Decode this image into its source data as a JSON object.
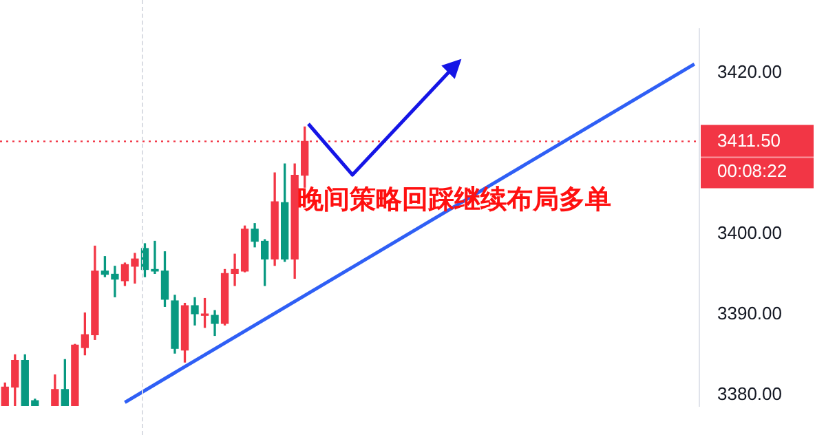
{
  "chart_data": {
    "type": "candlestick",
    "categories": [
      null,
      null,
      null,
      null,
      null,
      null,
      null,
      null,
      null,
      null,
      null,
      null,
      null,
      null,
      null,
      null,
      null,
      null,
      null,
      null,
      null,
      null,
      null,
      null,
      null,
      null,
      null,
      null,
      null,
      null,
      null,
      null,
      null,
      null,
      null,
      null,
      null,
      null,
      null,
      null,
      null,
      null,
      null,
      null,
      null,
      null,
      null,
      null,
      null,
      null,
      null,
      null,
      null,
      null,
      null,
      null,
      null,
      null,
      null,
      null,
      null,
      null,
      null,
      null,
      null,
      null,
      null,
      null,
      null,
      null
    ],
    "ohlc": [
      [
        3378.7,
        3381.5,
        3378.7,
        3381.0
      ],
      [
        3381.0,
        3385.0,
        3378.7,
        3384.3
      ],
      [
        3384.3,
        3385.0,
        3378.7,
        3378.7
      ],
      [
        3379.3,
        3379.5,
        3378.7,
        3378.7
      ],
      null,
      [
        3378.7,
        3382.5,
        3378.7,
        3380.7
      ],
      [
        3380.7,
        3384.4,
        3378.7,
        3378.7
      ],
      [
        3378.7,
        3386.3,
        3378.7,
        3386.2
      ],
      [
        3385.9,
        3390.2,
        3385.0,
        3387.5
      ],
      [
        3387.5,
        3398.5,
        3386.9,
        3395.4
      ],
      [
        3395.4,
        3397.2,
        3394.7,
        3395.0
      ],
      [
        3395.0,
        3396.0,
        3392.2,
        3394.4
      ],
      [
        3394.2,
        3396.4,
        3393.6,
        3396.2
      ],
      [
        3396.0,
        3397.6,
        3393.9,
        3396.9
      ],
      [
        3398.2,
        3398.8,
        3394.7,
        3395.6
      ],
      [
        3395.6,
        3399.1,
        3395.1,
        3395.4
      ],
      [
        3395.4,
        3397.8,
        3391.0,
        3391.9
      ],
      [
        3391.7,
        3392.4,
        3385.2,
        3385.8
      ],
      [
        3385.6,
        3391.4,
        3384.1,
        3391.1
      ],
      [
        3391.1,
        3392.1,
        3388.7,
        3390.1
      ],
      [
        3389.9,
        3392.0,
        3388.4,
        3390.0
      ],
      [
        3389.9,
        3390.5,
        3387.4,
        3388.9
      ],
      [
        3388.9,
        3395.6,
        3388.7,
        3395.1
      ],
      [
        3395.1,
        3397.5,
        3393.6,
        3395.6
      ],
      [
        3395.4,
        3401.0,
        3395.3,
        3400.6
      ],
      [
        3400.6,
        3401.3,
        3398.4,
        3399.1
      ],
      [
        3399.1,
        3399.3,
        3393.6,
        3396.9
      ],
      [
        3396.9,
        3407.6,
        3396.1,
        3404.0
      ],
      [
        3403.9,
        3408.7,
        3396.6,
        3396.9
      ],
      [
        3396.9,
        3408.7,
        3394.5,
        3407.3
      ],
      [
        3407.3,
        3413.3,
        3405.8,
        3411.5
      ],
      null,
      null,
      null,
      null,
      null,
      null,
      null,
      null,
      null,
      null,
      null,
      null,
      null,
      null,
      null,
      null,
      null,
      null,
      null,
      null,
      null,
      null,
      null,
      null,
      null,
      null,
      null,
      null,
      null,
      null,
      null,
      null,
      null,
      null,
      null,
      null,
      null,
      null,
      null
    ],
    "colors": [
      "#f23645",
      "#f23645",
      "#089981",
      "#089981",
      null,
      "#f23645",
      "#089981",
      "#f23645",
      "#f23645",
      "#f23645",
      "#089981",
      "#089981",
      "#f23645",
      "#f23645",
      "#089981",
      "#089981",
      "#089981",
      "#089981",
      "#f23645",
      "#089981",
      "#f23645",
      "#089981",
      "#f23645",
      "#f23645",
      "#f23645",
      "#089981",
      "#089981",
      "#f23645",
      "#089981",
      "#f23645",
      "#f23645",
      null,
      null,
      null,
      null,
      null,
      null,
      null,
      null,
      null,
      null,
      null,
      null,
      null,
      null,
      null,
      null,
      null,
      null,
      null,
      null,
      null,
      null,
      null,
      null,
      null,
      null,
      null,
      null,
      null,
      null,
      null,
      null,
      null,
      null,
      null,
      null,
      null,
      null,
      null
    ],
    "series": [
      {
        "type": "line",
        "values": [
          null,
          null,
          null,
          null,
          null,
          null,
          null,
          null,
          null,
          null,
          null,
          null,
          3379.1,
          null,
          null,
          null,
          null,
          null,
          null,
          null,
          null,
          null,
          null,
          null,
          null,
          null,
          null,
          null,
          null,
          null,
          null,
          null,
          null,
          null,
          null,
          null,
          null,
          null,
          null,
          null,
          null,
          null,
          null,
          null,
          null,
          null,
          null,
          null,
          null,
          null,
          null,
          null,
          null,
          null,
          null,
          null,
          null,
          null,
          null,
          null,
          null,
          null,
          null,
          null,
          null,
          null,
          null,
          null,
          null,
          3421.1
        ],
        "color": "#2f5ff5"
      }
    ],
    "ylim": [
      3378.6,
      3425.5
    ],
    "yticks": [
      {
        "value": 3380,
        "label": "3380.00"
      },
      {
        "value": 3390,
        "label": "3390.00"
      },
      {
        "value": 3400,
        "label": "3400.00"
      },
      {
        "value": 3420,
        "label": "3420.00"
      }
    ],
    "tick_labels": "y",
    "grid": false,
    "legend": false,
    "ref_lines": [
      {
        "axis": "y",
        "value": 3411.5,
        "label": "3411.50",
        "color": "#f23645",
        "line_style": "dotted"
      }
    ],
    "annotations": [
      "晚间策略回踩继续布局多单",
      "00:08:22"
    ]
  }
}
